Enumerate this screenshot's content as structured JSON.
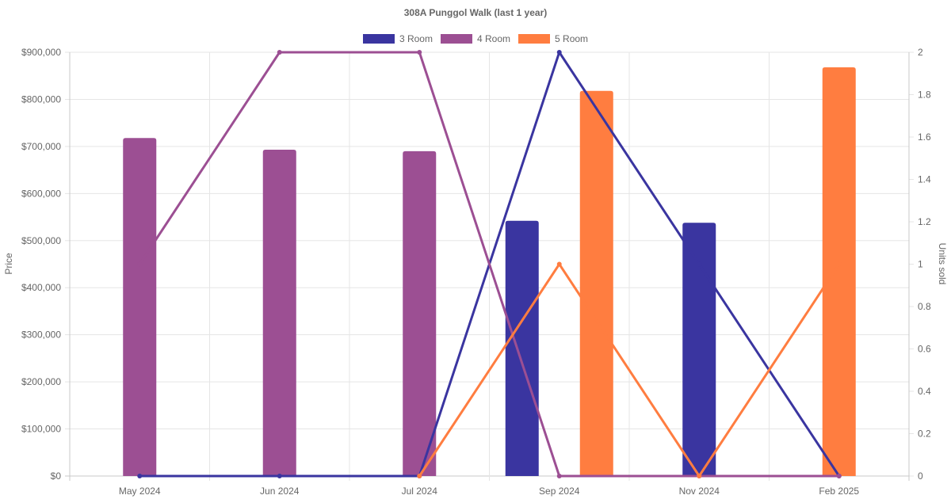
{
  "chart_data": {
    "type": "bar",
    "title": "308A Punggol Walk (last 1 year)",
    "categories": [
      "May 2024",
      "Jun 2024",
      "Jul 2024",
      "Sep 2024",
      "Nov 2024",
      "Feb 2025"
    ],
    "ylabel": "Price",
    "y2label": "Units sold",
    "ylim": [
      0,
      900000
    ],
    "y2lim": [
      0,
      2
    ],
    "yticks": [
      "$0",
      "$100,000",
      "$200,000",
      "$300,000",
      "$400,000",
      "$500,000",
      "$600,000",
      "$700,000",
      "$800,000",
      "$900,000"
    ],
    "y2ticks": [
      "0",
      "0.2",
      "0.4",
      "0.6",
      "0.8",
      "1",
      "1.2",
      "1.4",
      "1.6",
      "1.8",
      "2"
    ],
    "grid": true,
    "legend_position": "top",
    "series": [
      {
        "name": "3 Room",
        "color": "#3a35a0",
        "price": [
          null,
          null,
          null,
          542000,
          538000,
          null
        ],
        "units": [
          0,
          0,
          0,
          2,
          1,
          0
        ]
      },
      {
        "name": "4 Room",
        "color": "#9c4f93",
        "price": [
          718000,
          693000,
          690000,
          null,
          null,
          null
        ],
        "units": [
          1,
          2,
          2,
          0,
          0,
          0
        ]
      },
      {
        "name": "5 Room",
        "color": "#ff7d40",
        "price": [
          null,
          null,
          null,
          818000,
          null,
          868000
        ],
        "units": [
          null,
          null,
          0,
          1,
          0,
          1
        ]
      }
    ]
  }
}
